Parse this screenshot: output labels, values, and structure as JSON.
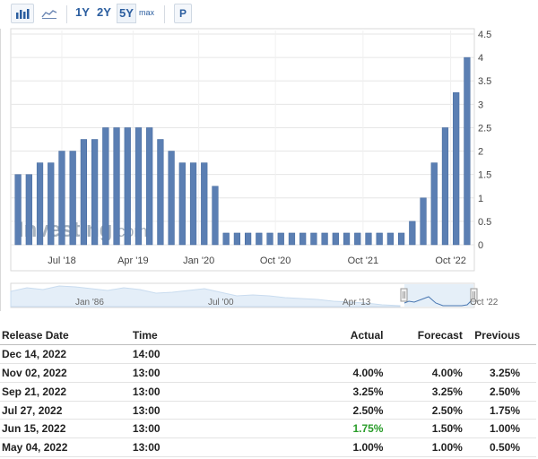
{
  "toolbar": {
    "range_buttons": [
      "1Y",
      "2Y",
      "5Y",
      "max"
    ],
    "active_range": "5Y",
    "p_label": "P",
    "icons": [
      "bar-chart-icon",
      "line-chart-icon"
    ]
  },
  "colors": {
    "bar": "#5b7fb3",
    "bar_stroke": "#41669b",
    "grid": "#e6e6e6",
    "link": "#2a5d9f",
    "positive": "#2a9d2a",
    "navigator_fill": "#cfe2f3"
  },
  "watermark": "Investing.com",
  "chart_data": {
    "type": "bar",
    "title": "",
    "xlabel": "",
    "ylabel": "",
    "ylim": [
      0,
      4.5
    ],
    "y_ticks": [
      "0",
      "0.5",
      "1",
      "1.5",
      "2",
      "2.5",
      "3",
      "3.5",
      "4",
      "4.5"
    ],
    "x_tick_labels": [
      {
        "label": "Jul '18",
        "index": 4
      },
      {
        "label": "Apr '19",
        "index": 10.5
      },
      {
        "label": "Jan '20",
        "index": 16.5
      },
      {
        "label": "Oct '20",
        "index": 23.5
      },
      {
        "label": "Oct '21",
        "index": 31.5
      },
      {
        "label": "Oct '22",
        "index": 39.5
      }
    ],
    "values": [
      1.5,
      1.5,
      1.75,
      1.75,
      2.0,
      2.0,
      2.25,
      2.25,
      2.5,
      2.5,
      2.5,
      2.5,
      2.5,
      2.25,
      2.0,
      1.75,
      1.75,
      1.75,
      1.25,
      0.25,
      0.25,
      0.25,
      0.25,
      0.25,
      0.25,
      0.25,
      0.25,
      0.25,
      0.25,
      0.25,
      0.25,
      0.25,
      0.25,
      0.25,
      0.25,
      0.25,
      0.5,
      1.0,
      1.75,
      2.5,
      3.25,
      4.0
    ]
  },
  "navigator": {
    "labels": [
      "Jan '86",
      "Jul '00",
      "Apr '13",
      "Oct '22"
    ]
  },
  "table": {
    "headers": {
      "release_date": "Release Date",
      "time": "Time",
      "actual": "Actual",
      "forecast": "Forecast",
      "previous": "Previous"
    },
    "rows": [
      {
        "date": "Dec 14, 2022",
        "time": "14:00",
        "actual": "",
        "forecast": "",
        "previous": "",
        "actual_color": ""
      },
      {
        "date": "Nov 02, 2022",
        "time": "13:00",
        "actual": "4.00%",
        "forecast": "4.00%",
        "previous": "3.25%",
        "actual_color": ""
      },
      {
        "date": "Sep 21, 2022",
        "time": "13:00",
        "actual": "3.25%",
        "forecast": "3.25%",
        "previous": "2.50%",
        "actual_color": ""
      },
      {
        "date": "Jul 27, 2022",
        "time": "13:00",
        "actual": "2.50%",
        "forecast": "2.50%",
        "previous": "1.75%",
        "actual_color": ""
      },
      {
        "date": "Jun 15, 2022",
        "time": "13:00",
        "actual": "1.75%",
        "forecast": "1.50%",
        "previous": "1.00%",
        "actual_color": "#2a9d2a"
      },
      {
        "date": "May 04, 2022",
        "time": "13:00",
        "actual": "1.00%",
        "forecast": "1.00%",
        "previous": "0.50%",
        "actual_color": ""
      }
    ]
  }
}
